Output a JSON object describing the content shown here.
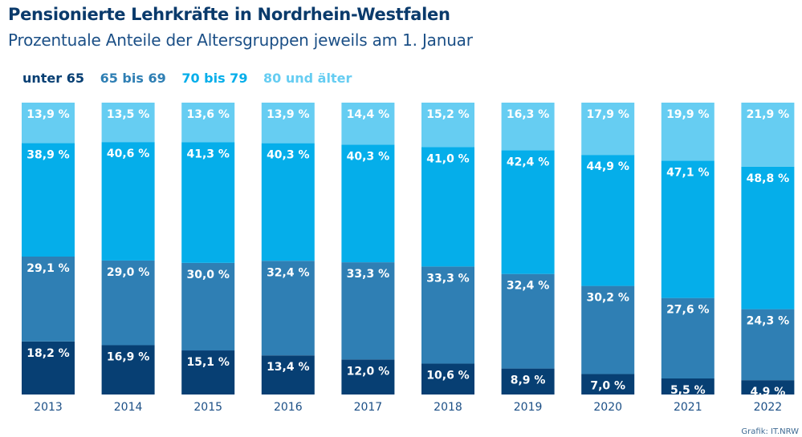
{
  "header": {
    "title": "Pensionierte Lehrkräfte in Nordrhein-Westfalen",
    "subtitle": "Prozentuale Anteile der Altersgruppen jeweils am 1. Januar"
  },
  "legend": [
    {
      "label": "unter 65",
      "color": "#073f73"
    },
    {
      "label": "65 bis 69",
      "color": "#2f7fb4"
    },
    {
      "label": "70 bis 79",
      "color": "#05aeea"
    },
    {
      "label": "80 und älter",
      "color": "#66cdf2"
    }
  ],
  "credit": "Grafik: IT.NRW",
  "chart_data": {
    "type": "bar",
    "stacked": true,
    "categories": [
      "2013",
      "2014",
      "2015",
      "2016",
      "2017",
      "2018",
      "2019",
      "2020",
      "2021",
      "2022"
    ],
    "series": [
      {
        "name": "unter 65",
        "color": "#073f73",
        "values": [
          18.2,
          16.9,
          15.1,
          13.4,
          12.0,
          10.6,
          8.9,
          7.0,
          5.5,
          4.9
        ],
        "labels": [
          "18,2 %",
          "16,9 %",
          "15,1 %",
          "13,4 %",
          "12,0 %",
          "10,6 %",
          "8,9 %",
          "7,0 %",
          "5,5 %",
          "4,9 %"
        ]
      },
      {
        "name": "65 bis 69",
        "color": "#2f7fb4",
        "values": [
          29.1,
          29.0,
          30.0,
          32.4,
          33.3,
          33.3,
          32.4,
          30.2,
          27.6,
          24.3
        ],
        "labels": [
          "29,1 %",
          "29,0 %",
          "30,0 %",
          "32,4 %",
          "33,3 %",
          "33,3 %",
          "32,4 %",
          "30,2 %",
          "27,6 %",
          "24,3 %"
        ]
      },
      {
        "name": "70 bis 79",
        "color": "#05aeea",
        "values": [
          38.9,
          40.6,
          41.3,
          40.3,
          40.3,
          41.0,
          42.4,
          44.9,
          47.1,
          48.8
        ],
        "labels": [
          "38,9 %",
          "40,6 %",
          "41,3 %",
          "40,3 %",
          "40,3 %",
          "41,0 %",
          "42,4 %",
          "44,9 %",
          "47,1 %",
          "48,8 %"
        ]
      },
      {
        "name": "80 und älter",
        "color": "#66cdf2",
        "values": [
          13.9,
          13.5,
          13.6,
          13.9,
          14.4,
          15.2,
          16.3,
          17.9,
          19.9,
          21.9
        ],
        "labels": [
          "13,9 %",
          "13,5 %",
          "13,6 %",
          "13,9 %",
          "14,4 %",
          "15,2 %",
          "16,3 %",
          "17,9 %",
          "19,9 %",
          "21,9 %"
        ]
      }
    ],
    "ylim": [
      0,
      100
    ],
    "grid": false,
    "legend_position": "top-left"
  }
}
